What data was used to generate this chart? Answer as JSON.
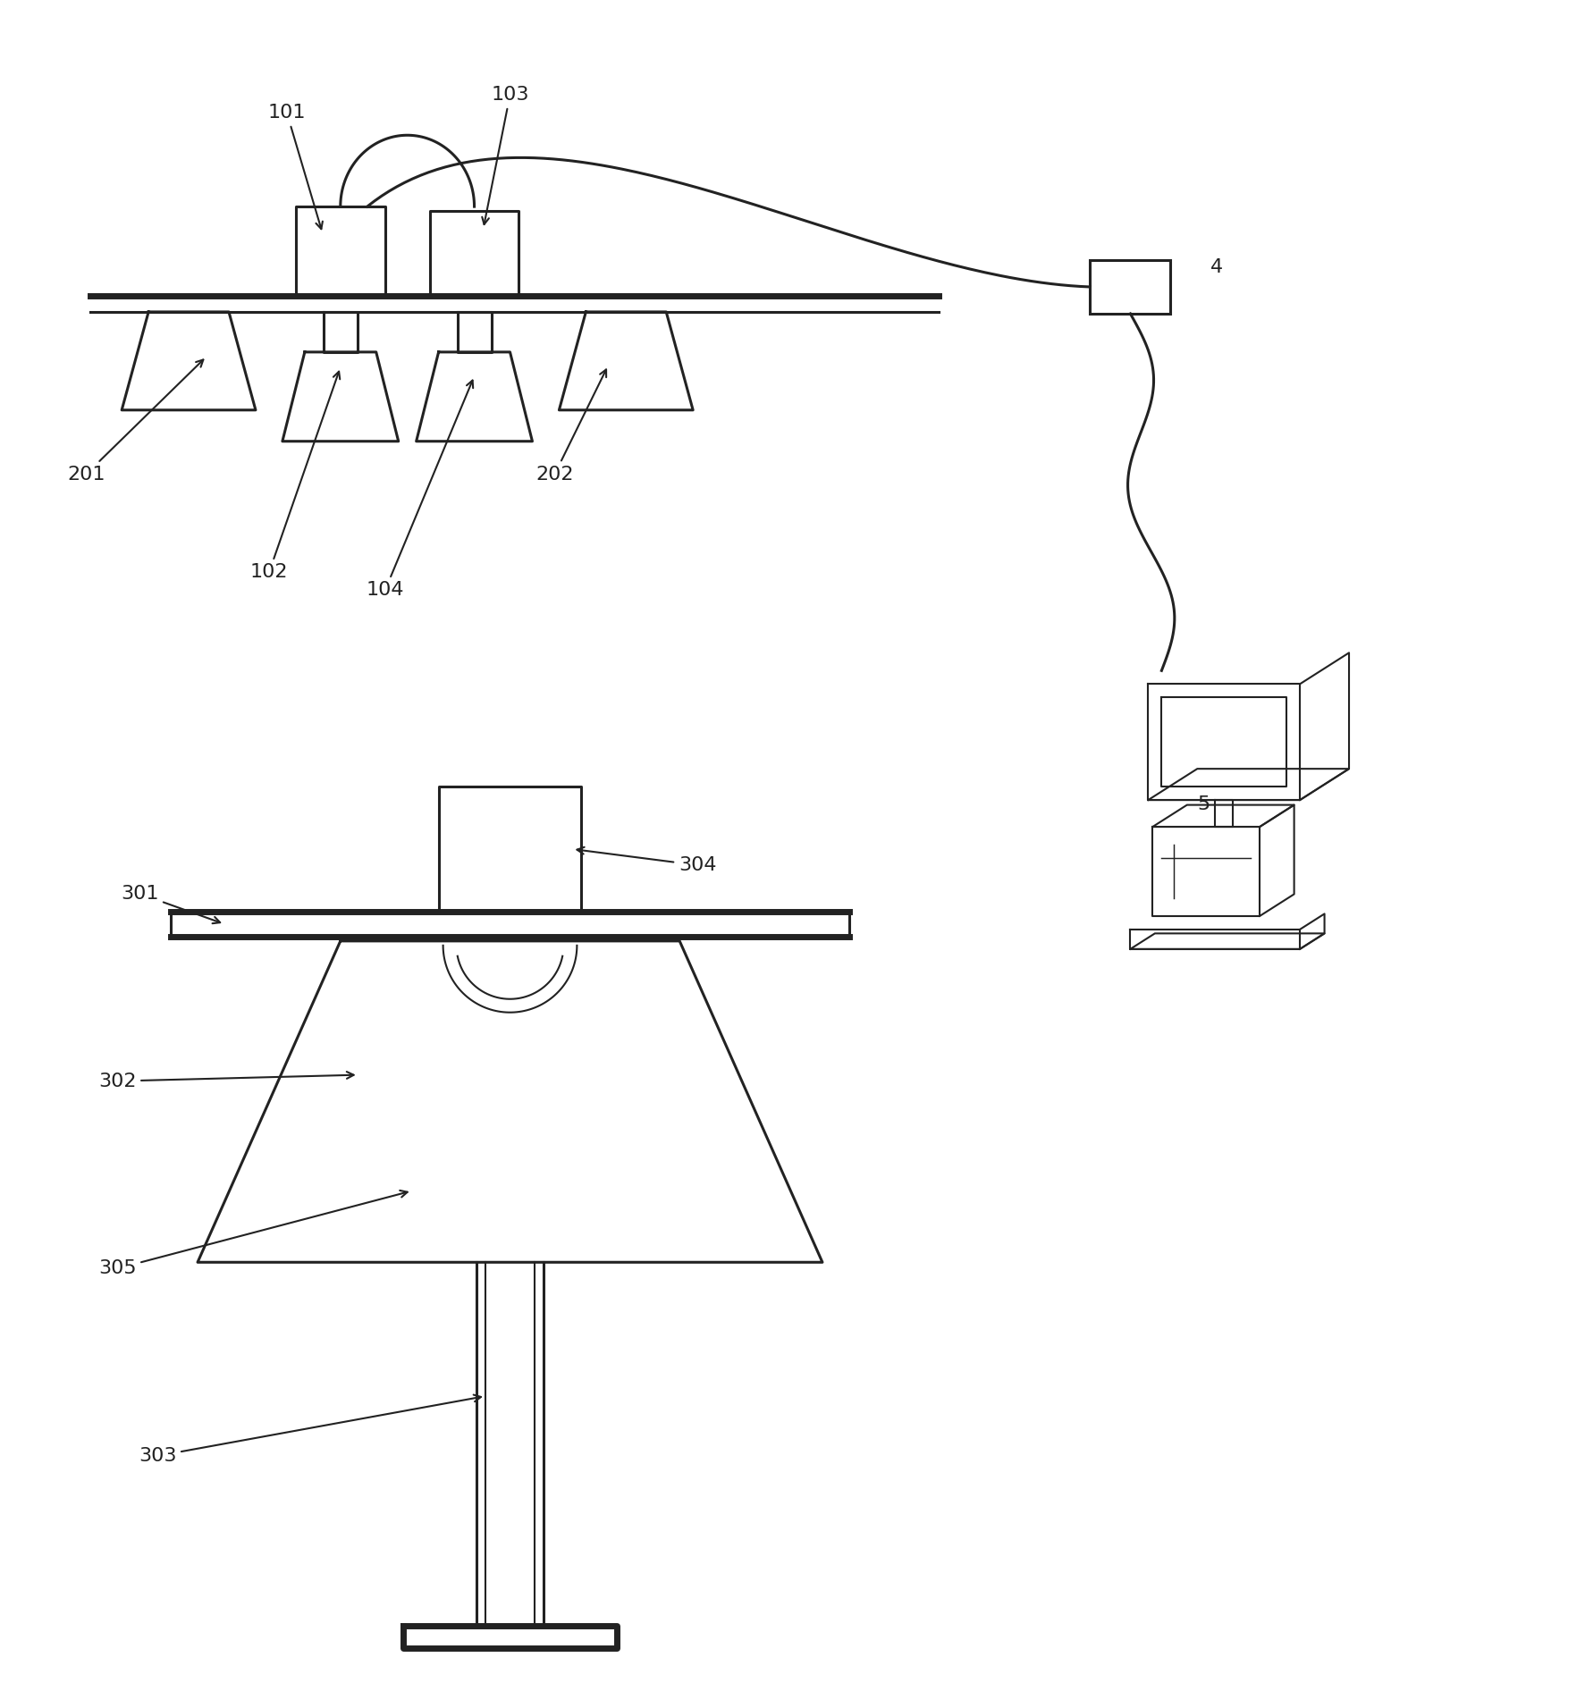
{
  "bg_color": "#ffffff",
  "line_color": "#222222",
  "label_fontsize": 16,
  "fig_width": 17.73,
  "fig_height": 19.11
}
